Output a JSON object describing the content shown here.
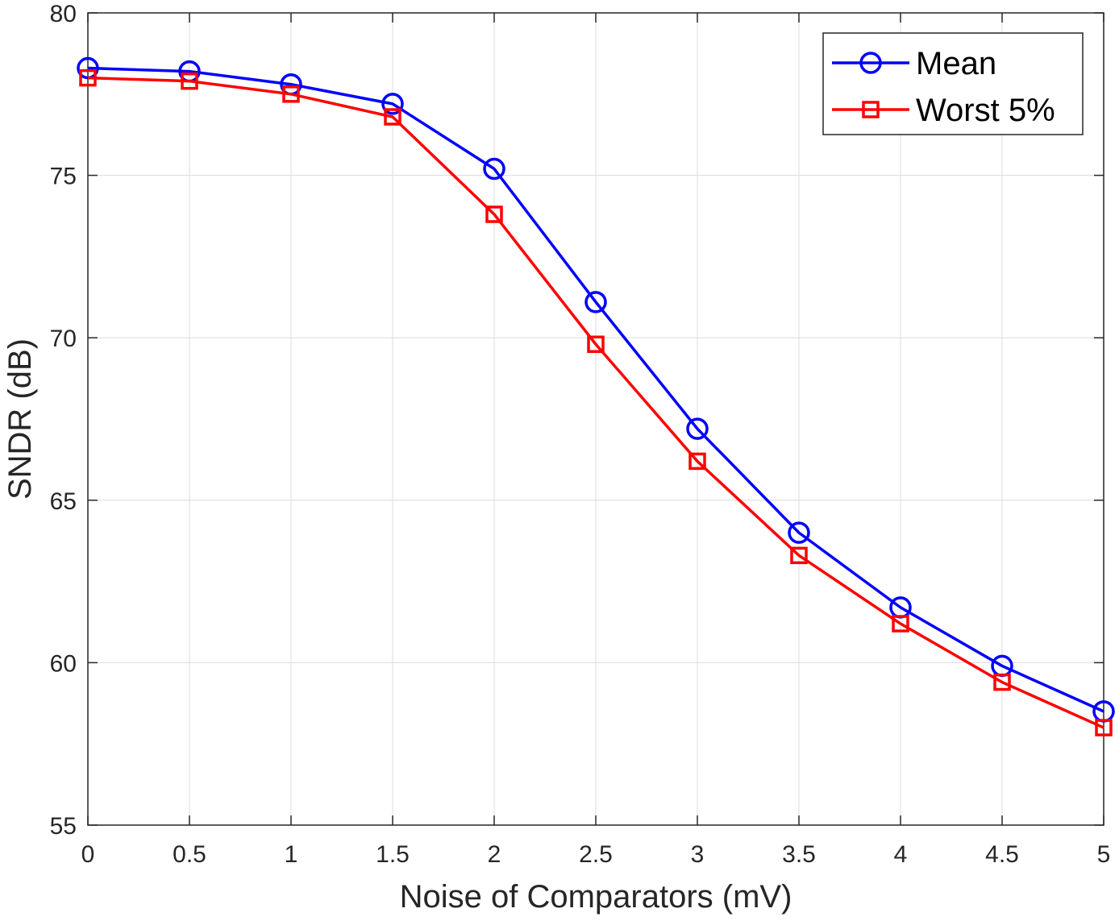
{
  "chart_data": {
    "type": "line",
    "xlabel": "Noise of Comparators (mV)",
    "ylabel": "SNDR (dB)",
    "xlim": [
      0,
      5
    ],
    "ylim": [
      55,
      80
    ],
    "xticks": [
      "0",
      "0.5",
      "1",
      "1.5",
      "2",
      "2.5",
      "3",
      "3.5",
      "4",
      "4.5",
      "5"
    ],
    "yticks": [
      "55",
      "60",
      "65",
      "70",
      "75",
      "80"
    ],
    "grid": true,
    "legend_position": "top-right",
    "x": [
      0,
      0.5,
      1,
      1.5,
      2,
      2.5,
      3,
      3.5,
      4,
      4.5,
      5
    ],
    "series": [
      {
        "name": "Mean",
        "color": "#0000ff",
        "marker": "circle",
        "values": [
          78.3,
          78.2,
          77.8,
          77.2,
          75.2,
          71.1,
          67.2,
          64.0,
          61.7,
          59.9,
          58.5
        ]
      },
      {
        "name": "Worst 5%",
        "color": "#ff0000",
        "marker": "square",
        "values": [
          78.0,
          77.9,
          77.5,
          76.8,
          73.8,
          69.8,
          66.2,
          63.3,
          61.2,
          59.4,
          58.0
        ]
      }
    ]
  }
}
